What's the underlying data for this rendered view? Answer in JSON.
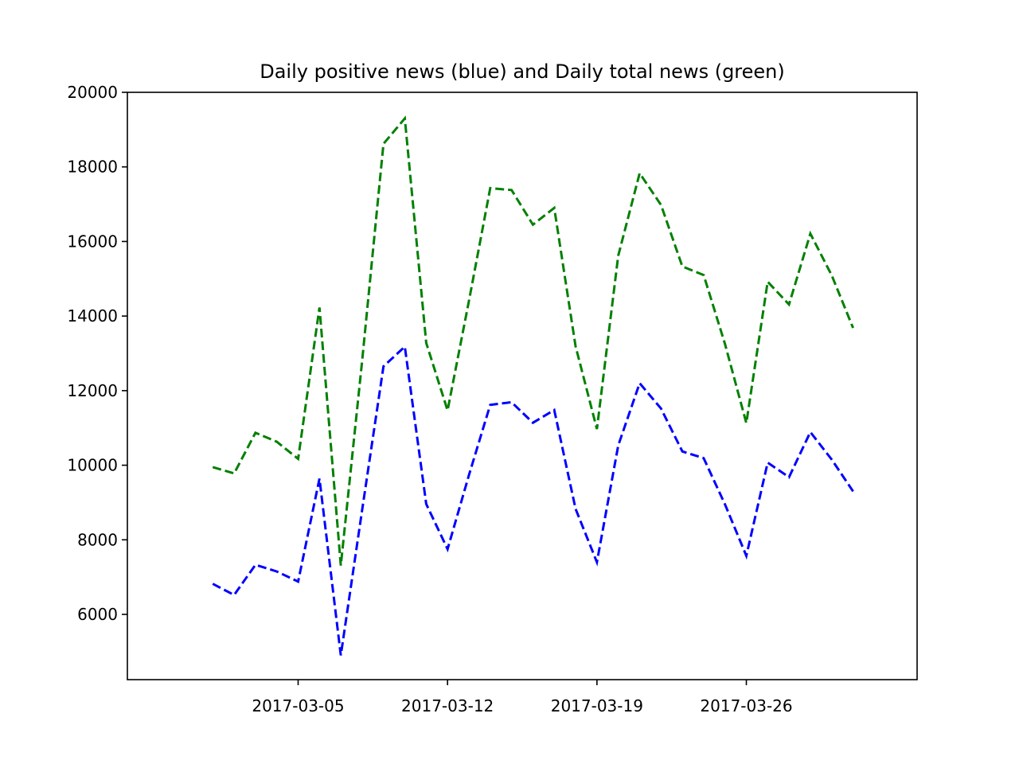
{
  "chart_data": {
    "type": "line",
    "title": "Daily positive news (blue) and Daily total news (green)",
    "xlabel": "",
    "ylabel": "",
    "x": [
      "2017-03-01",
      "2017-03-02",
      "2017-03-03",
      "2017-03-04",
      "2017-03-05",
      "2017-03-06",
      "2017-03-07",
      "2017-03-08",
      "2017-03-09",
      "2017-03-10",
      "2017-03-11",
      "2017-03-12",
      "2017-03-13",
      "2017-03-14",
      "2017-03-15",
      "2017-03-16",
      "2017-03-17",
      "2017-03-18",
      "2017-03-19",
      "2017-03-20",
      "2017-03-21",
      "2017-03-22",
      "2017-03-23",
      "2017-03-24",
      "2017-03-25",
      "2017-03-26",
      "2017-03-27",
      "2017-03-28",
      "2017-03-29",
      "2017-03-30",
      "2017-03-31"
    ],
    "xlim": [
      "2017-02-25",
      "2017-04-03"
    ],
    "xticks": [
      "2017-03-05",
      "2017-03-12",
      "2017-03-19",
      "2017-03-26"
    ],
    "ylim": [
      4250,
      20000
    ],
    "yticks": [
      6000,
      8000,
      10000,
      12000,
      14000,
      16000,
      18000,
      20000
    ],
    "grid": false,
    "series": [
      {
        "color": "#0000ff",
        "linestyle": "dashed",
        "values": [
          6820,
          6520,
          7330,
          7150,
          6880,
          9640,
          4900,
          8800,
          12650,
          13180,
          8960,
          7750,
          9730,
          11620,
          11690,
          11140,
          11480,
          8830,
          7400,
          10530,
          12200,
          11520,
          10370,
          10190,
          8950,
          7570,
          10070,
          9680,
          10890,
          10150,
          9300
        ]
      },
      {
        "color": "#008000",
        "linestyle": "dashed",
        "values": [
          9950,
          9780,
          10870,
          10630,
          10170,
          14230,
          7310,
          12800,
          18620,
          19300,
          13280,
          11470,
          14400,
          17430,
          17380,
          16450,
          16900,
          13190,
          10970,
          15620,
          17830,
          16980,
          15330,
          15100,
          13250,
          11130,
          14920,
          14310,
          16210,
          15090,
          13680
        ]
      }
    ]
  }
}
